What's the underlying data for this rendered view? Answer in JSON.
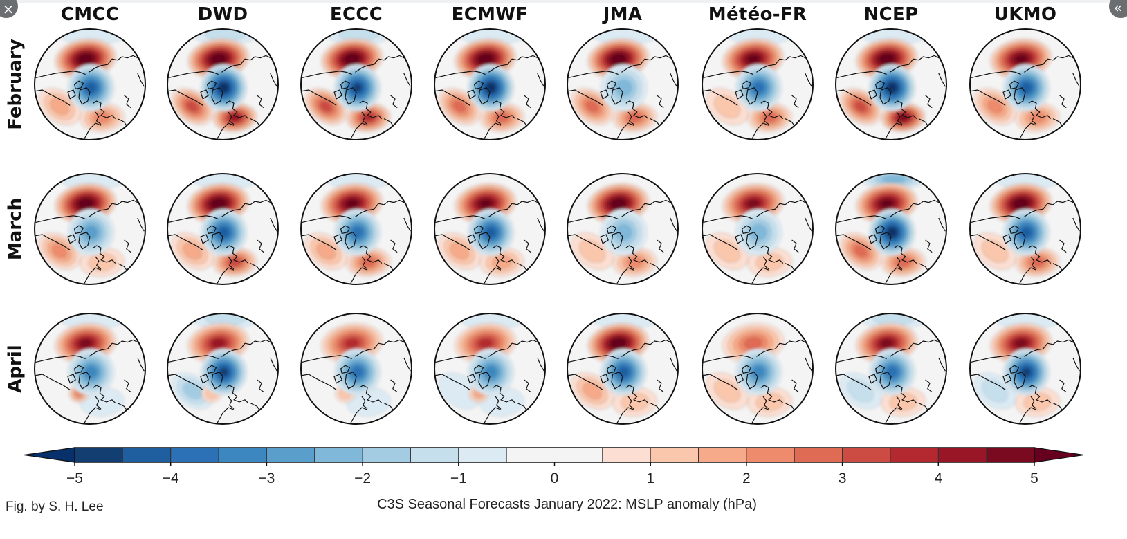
{
  "ui": {
    "close_icon": "×",
    "collapse_icon": "«"
  },
  "chart_data": {
    "type": "heatmap",
    "title": "C3S Seasonal Forecasts January 2022: MSLP anomaly (hPa)",
    "credit": "Fig. by S. H. Lee",
    "projection": "north-polar-stereographic",
    "columns": [
      "CMCC",
      "DWD",
      "ECCC",
      "ECMWF",
      "JMA",
      "Météo-FR",
      "NCEP",
      "UKMO"
    ],
    "rows": [
      "February",
      "March",
      "April"
    ],
    "colorbar": {
      "min": -5,
      "max": 5,
      "step": 0.5,
      "extend": "both",
      "ticks": [
        -5,
        -4,
        -3,
        -2,
        -1,
        0,
        1,
        2,
        3,
        4,
        5
      ],
      "tick_labels": [
        "−5",
        "−4",
        "−3",
        "−2",
        "−1",
        "0",
        "1",
        "2",
        "3",
        "4",
        "5"
      ],
      "colors": [
        "#08306b",
        "#123e72",
        "#1f5fa0",
        "#2c71b5",
        "#3d87c0",
        "#5a9ecb",
        "#7fb8d9",
        "#a3cce3",
        "#c5dfec",
        "#dceaf3",
        "#f4f4f4",
        "#f4f4f4",
        "#fcdfd2",
        "#fbc7ac",
        "#f7aa89",
        "#ee8b6c",
        "#e06b54",
        "#cc4b43",
        "#b4292f",
        "#991627",
        "#7a0a1f",
        "#67001f"
      ]
    },
    "panels": [
      {
        "model": "CMCC",
        "month": "February",
        "pacific_high": 5.5,
        "arctic_low": -4.0,
        "atlantic_ridge": 1.5,
        "europe_ridge": 1.8,
        "pacific_south": 0,
        "north_band": -0.6
      },
      {
        "model": "DWD",
        "month": "February",
        "pacific_high": 5.5,
        "arctic_low": -5.0,
        "atlantic_ridge": 3.0,
        "europe_ridge": 4.0,
        "pacific_south": 0,
        "north_band": -0.8
      },
      {
        "model": "ECCC",
        "month": "February",
        "pacific_high": 5.5,
        "arctic_low": -4.5,
        "atlantic_ridge": 3.0,
        "europe_ridge": 3.5,
        "pacific_south": 0,
        "north_band": -0.8
      },
      {
        "model": "ECMWF",
        "month": "February",
        "pacific_high": 5.5,
        "arctic_low": -5.0,
        "atlantic_ridge": 2.5,
        "europe_ridge": 2.5,
        "pacific_south": 0,
        "north_band": -0.6
      },
      {
        "model": "JMA",
        "month": "February",
        "pacific_high": 5.5,
        "arctic_low": -2.0,
        "atlantic_ridge": 2.5,
        "europe_ridge": 2.5,
        "pacific_south": 0,
        "north_band": -0.7
      },
      {
        "model": "Météo-FR",
        "month": "February",
        "pacific_high": 5.0,
        "arctic_low": -3.5,
        "atlantic_ridge": 1.0,
        "europe_ridge": 2.5,
        "pacific_south": 0,
        "north_band": -0.6
      },
      {
        "model": "NCEP",
        "month": "February",
        "pacific_high": 5.5,
        "arctic_low": -5.0,
        "atlantic_ridge": 3.0,
        "europe_ridge": 4.5,
        "pacific_south": 0,
        "north_band": -0.6
      },
      {
        "model": "UKMO",
        "month": "February",
        "pacific_high": 5.0,
        "arctic_low": -4.0,
        "atlantic_ridge": 2.0,
        "europe_ridge": 2.0,
        "pacific_south": 0,
        "north_band": 0
      },
      {
        "model": "CMCC",
        "month": "March",
        "pacific_high": 5.5,
        "arctic_low": -2.5,
        "atlantic_ridge": 2.0,
        "europe_ridge": 1.0,
        "pacific_south": 0,
        "north_band": -0.6
      },
      {
        "model": "DWD",
        "month": "March",
        "pacific_high": 5.5,
        "arctic_low": -4.0,
        "atlantic_ridge": 1.5,
        "europe_ridge": 3.0,
        "pacific_south": 0,
        "north_band": -0.6
      },
      {
        "model": "ECCC",
        "month": "March",
        "pacific_high": 5.0,
        "arctic_low": -3.5,
        "atlantic_ridge": 1.5,
        "europe_ridge": 2.5,
        "pacific_south": 0,
        "north_band": -0.6
      },
      {
        "model": "ECMWF",
        "month": "March",
        "pacific_high": 5.0,
        "arctic_low": -4.0,
        "atlantic_ridge": 1.5,
        "europe_ridge": 1.5,
        "pacific_south": 0,
        "north_band": 0
      },
      {
        "model": "JMA",
        "month": "March",
        "pacific_high": 5.5,
        "arctic_low": -2.0,
        "atlantic_ridge": 1.0,
        "europe_ridge": 2.0,
        "pacific_south": 0,
        "north_band": 0
      },
      {
        "model": "Météo-FR",
        "month": "March",
        "pacific_high": 4.5,
        "arctic_low": -2.0,
        "atlantic_ridge": 0.8,
        "europe_ridge": 1.0,
        "pacific_south": 0,
        "north_band": 0
      },
      {
        "model": "NCEP",
        "month": "March",
        "pacific_high": 5.0,
        "arctic_low": -5.0,
        "atlantic_ridge": 2.5,
        "europe_ridge": 2.5,
        "pacific_south": 0,
        "north_band": -1.8
      },
      {
        "model": "UKMO",
        "month": "March",
        "pacific_high": 5.5,
        "arctic_low": -4.0,
        "atlantic_ridge": 1.0,
        "europe_ridge": 2.5,
        "pacific_south": 0,
        "north_band": -0.6
      },
      {
        "model": "CMCC",
        "month": "April",
        "pacific_high": 4.5,
        "arctic_low": -3.0,
        "atlantic_ridge": 0,
        "europe_ridge": -0.7,
        "pacific_south": 2.0,
        "north_band": -0.6
      },
      {
        "model": "DWD",
        "month": "April",
        "pacific_high": 4.0,
        "arctic_low": -4.5,
        "atlantic_ridge": -1.5,
        "europe_ridge": 0,
        "pacific_south": 0.8,
        "north_band": -0.8
      },
      {
        "model": "ECCC",
        "month": "April",
        "pacific_high": 3.5,
        "arctic_low": -3.5,
        "atlantic_ridge": 0,
        "europe_ridge": -0.7,
        "pacific_south": 1.0,
        "north_band": 0
      },
      {
        "model": "ECMWF",
        "month": "April",
        "pacific_high": 3.5,
        "arctic_low": -3.0,
        "atlantic_ridge": -0.7,
        "europe_ridge": -0.7,
        "pacific_south": 1.5,
        "north_band": -0.6
      },
      {
        "model": "JMA",
        "month": "April",
        "pacific_high": 5.5,
        "arctic_low": -4.0,
        "atlantic_ridge": 1.5,
        "europe_ridge": 1.0,
        "pacific_south": 0,
        "north_band": -0.6
      },
      {
        "model": "Météo-FR",
        "month": "April",
        "pacific_high": 2.5,
        "arctic_low": -3.0,
        "atlantic_ridge": 1.0,
        "europe_ridge": 1.0,
        "pacific_south": 0,
        "north_band": 0
      },
      {
        "model": "NCEP",
        "month": "April",
        "pacific_high": 4.5,
        "arctic_low": -3.5,
        "atlantic_ridge": -1.0,
        "europe_ridge": 0.8,
        "pacific_south": 0,
        "north_band": -1.0
      },
      {
        "model": "UKMO",
        "month": "April",
        "pacific_high": 4.5,
        "arctic_low": -4.5,
        "atlantic_ridge": -0.8,
        "europe_ridge": 0.8,
        "pacific_south": 0,
        "north_band": -0.6
      }
    ]
  }
}
